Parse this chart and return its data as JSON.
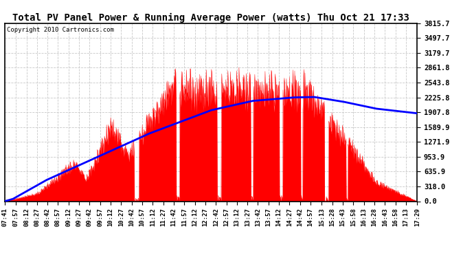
{
  "title": "Total PV Panel Power & Running Average Power (watts) Thu Oct 21 17:33",
  "copyright": "Copyright 2010 Cartronics.com",
  "background_color": "#ffffff",
  "plot_bg_color": "#ffffff",
  "bar_color": "#ff0000",
  "line_color": "#0000ff",
  "grid_color": "#c8c8c8",
  "yticks": [
    0.0,
    318.0,
    635.9,
    953.9,
    1271.9,
    1589.9,
    1907.8,
    2225.8,
    2543.8,
    2861.8,
    3179.7,
    3497.7,
    3815.7
  ],
  "ymax": 3815.7,
  "xtick_labels": [
    "07:41",
    "07:57",
    "08:12",
    "08:27",
    "08:42",
    "08:57",
    "09:12",
    "09:27",
    "09:42",
    "09:57",
    "10:12",
    "10:27",
    "10:42",
    "10:57",
    "11:12",
    "11:27",
    "11:42",
    "11:57",
    "12:12",
    "12:27",
    "12:42",
    "12:57",
    "13:12",
    "13:27",
    "13:42",
    "13:57",
    "14:12",
    "14:27",
    "14:42",
    "14:57",
    "15:13",
    "15:28",
    "15:43",
    "15:58",
    "16:13",
    "16:28",
    "16:43",
    "16:58",
    "17:13",
    "17:29"
  ],
  "figsize": [
    6.9,
    3.75
  ],
  "dpi": 100
}
